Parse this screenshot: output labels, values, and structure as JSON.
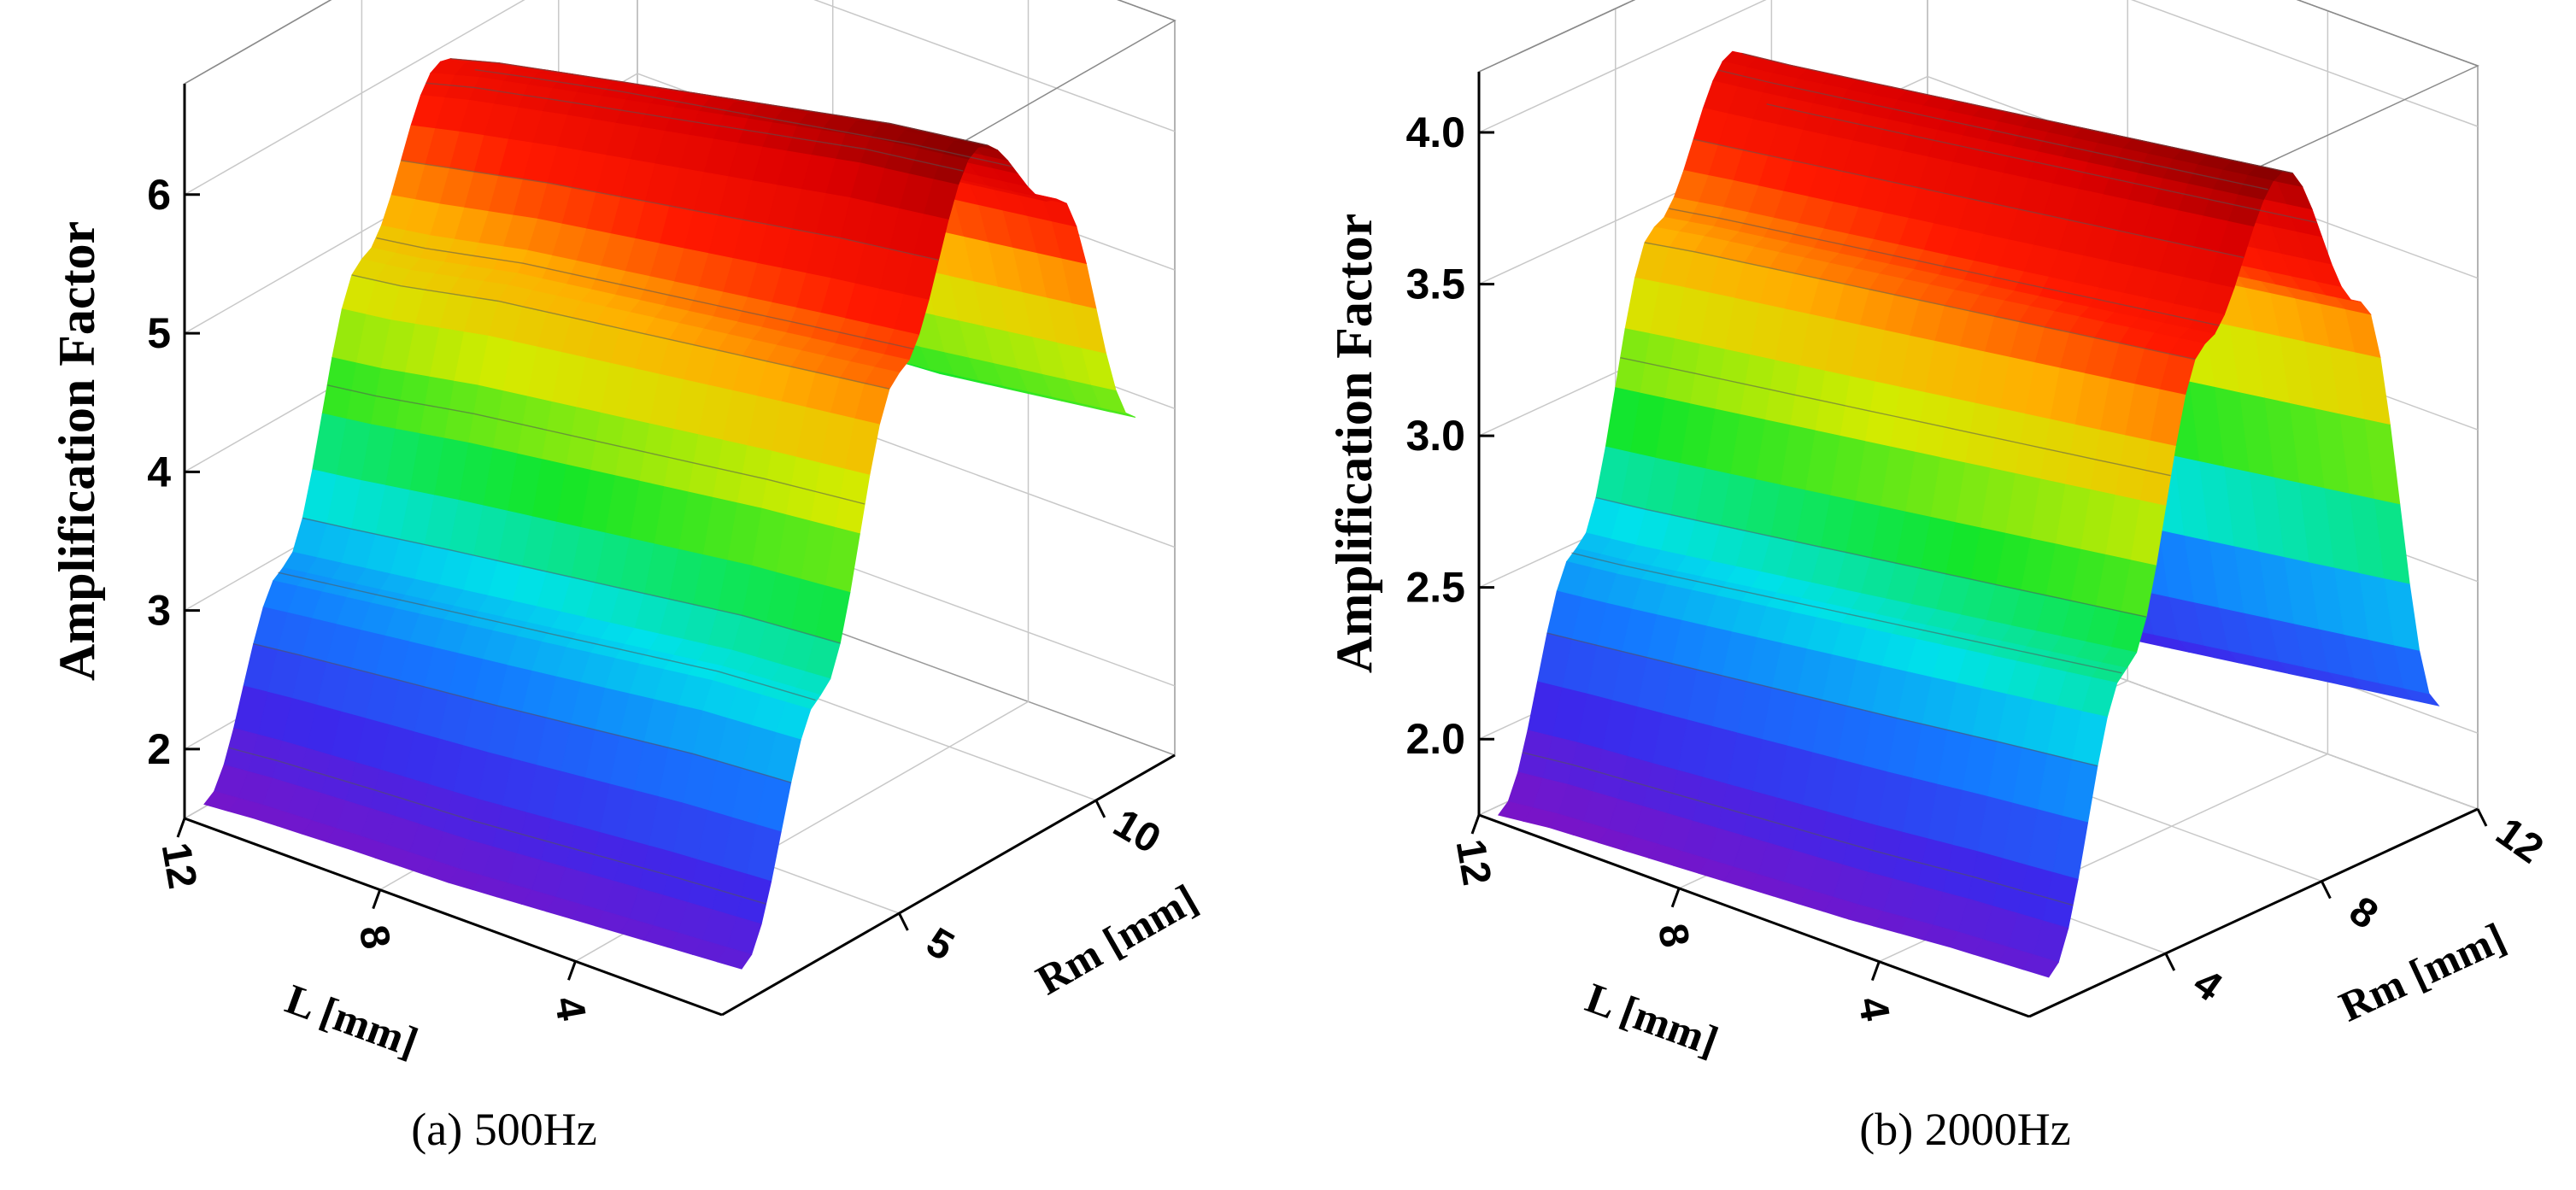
{
  "chart_data": [
    {
      "type": "surface",
      "panel_caption": "(a) 500Hz",
      "zlabel": "Amplification Factor",
      "xlabel": "L [mm]",
      "ylabel": "Rm [mm]",
      "x_ticks": [
        "4",
        "8",
        "12"
      ],
      "y_ticks": [
        "5",
        "10"
      ],
      "z_ticks": [
        "2",
        "3",
        "4",
        "5",
        "6"
      ],
      "xlim": [
        1,
        12
      ],
      "ylim": [
        0.5,
        12
      ],
      "zlim": [
        1.5,
        6.8
      ],
      "grid": true,
      "colormap": "rainbow",
      "L": [
        1,
        3,
        5,
        7,
        9,
        11,
        12
      ],
      "Rm": [
        1,
        3,
        5,
        7,
        9,
        11
      ],
      "values": [
        [
          1.75,
          3.4,
          5.4,
          6.7,
          6.0,
          4.1
        ],
        [
          1.7,
          3.35,
          5.3,
          6.6,
          5.9,
          4.0
        ],
        [
          1.65,
          3.25,
          5.2,
          6.45,
          5.8,
          3.9
        ],
        [
          1.6,
          3.15,
          5.1,
          6.3,
          5.7,
          3.85
        ],
        [
          1.58,
          3.05,
          5.0,
          6.15,
          5.6,
          3.8
        ],
        [
          1.55,
          2.95,
          4.85,
          6.0,
          5.45,
          3.75
        ],
        [
          1.52,
          2.9,
          4.8,
          5.9,
          5.4,
          3.7
        ]
      ]
    },
    {
      "type": "surface",
      "panel_caption": "(b) 2000Hz",
      "zlabel": "Amplification Factor",
      "xlabel": "L [mm]",
      "ylabel": "Rm [mm]",
      "x_ticks": [
        "4",
        "8",
        "12"
      ],
      "y_ticks": [
        "4",
        "8",
        "12"
      ],
      "z_ticks": [
        "2.0",
        "2.5",
        "3.0",
        "3.5",
        "4.0"
      ],
      "xlim": [
        1,
        12
      ],
      "ylim": [
        0.5,
        12
      ],
      "zlim": [
        1.75,
        4.2
      ],
      "grid": true,
      "colormap": "rainbow",
      "L": [
        1,
        3,
        5,
        7,
        9,
        11,
        12
      ],
      "Rm": [
        1,
        3,
        5,
        7,
        9,
        11
      ],
      "values": [
        [
          1.85,
          2.75,
          3.7,
          4.15,
          3.6,
          2.15
        ],
        [
          1.83,
          2.7,
          3.65,
          4.1,
          3.55,
          2.1
        ],
        [
          1.8,
          2.65,
          3.6,
          4.05,
          3.5,
          2.05
        ],
        [
          1.78,
          2.6,
          3.55,
          4.0,
          3.45,
          2.0
        ],
        [
          1.76,
          2.55,
          3.5,
          3.95,
          3.4,
          1.95
        ],
        [
          1.74,
          2.5,
          3.45,
          3.9,
          3.35,
          1.9
        ],
        [
          1.72,
          2.48,
          3.42,
          3.88,
          3.32,
          1.88
        ]
      ]
    }
  ]
}
